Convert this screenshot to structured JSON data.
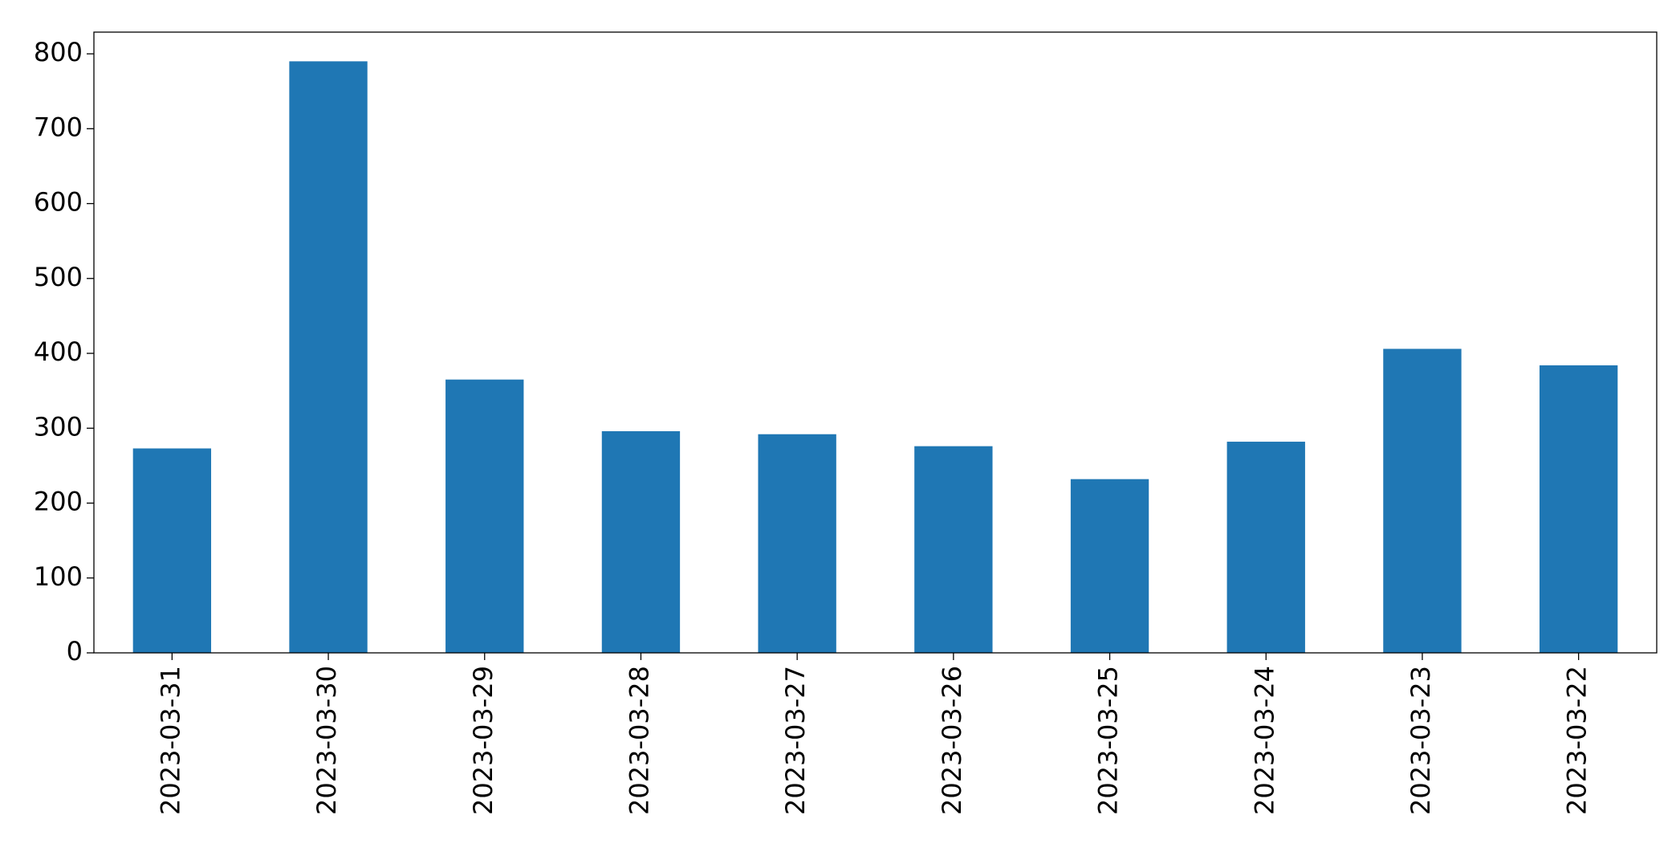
{
  "chart_data": {
    "type": "bar",
    "categories": [
      "2023-03-31",
      "2023-03-30",
      "2023-03-29",
      "2023-03-28",
      "2023-03-27",
      "2023-03-26",
      "2023-03-25",
      "2023-03-24",
      "2023-03-23",
      "2023-03-22"
    ],
    "values": [
      273,
      790,
      365,
      296,
      292,
      276,
      232,
      282,
      406,
      384
    ],
    "color": "#1f77b4",
    "ylim": [
      0,
      829
    ],
    "yticks": [
      0,
      100,
      200,
      300,
      400,
      500,
      600,
      700,
      800
    ],
    "grid": false
  }
}
